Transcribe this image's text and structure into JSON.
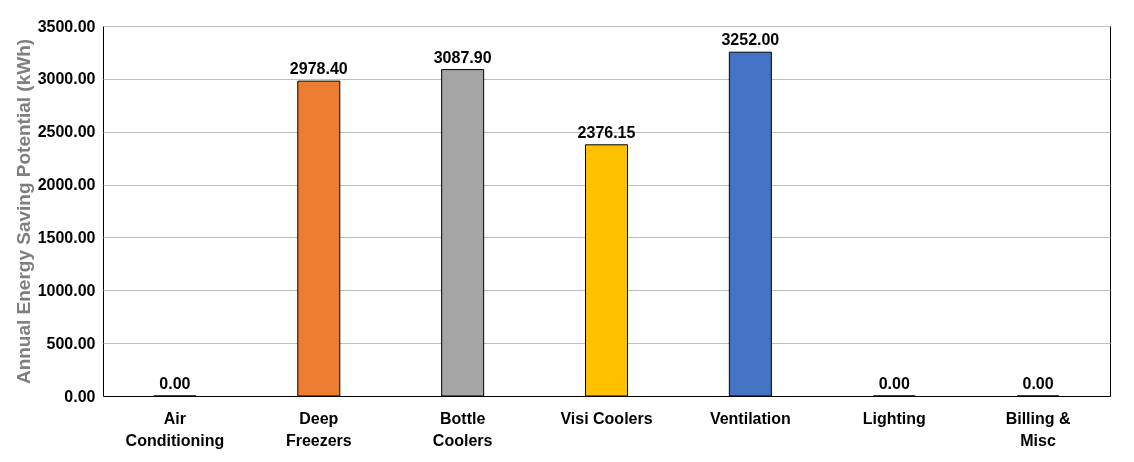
{
  "chart_data": {
    "type": "bar",
    "ylabel": "Annual Energy Saving Potential (kWh)",
    "categories": [
      "Air Conditioning",
      "Deep Freezers",
      "Bottle Coolers",
      "Visi Coolers",
      "Ventilation",
      "Lighting",
      "Billing & Misc"
    ],
    "values": [
      0,
      2978.4,
      3087.9,
      2376.15,
      3252,
      0,
      0
    ],
    "value_labels": [
      "0.00",
      "2978.40",
      "3087.90",
      "2376.15",
      "3252.00",
      "0.00",
      "0.00"
    ],
    "colors": [
      "#4472c4",
      "#ed7d31",
      "#a5a5a5",
      "#ffc000",
      "#4472c4",
      "#70ad47",
      "#264478"
    ],
    "ylim": [
      0,
      3500
    ],
    "yticks": [
      {
        "value": 0,
        "label": "0.00"
      },
      {
        "value": 500,
        "label": "500.00"
      },
      {
        "value": 1000,
        "label": "1000.00"
      },
      {
        "value": 1500,
        "label": "1500.00"
      },
      {
        "value": 2000,
        "label": "2000.00"
      },
      {
        "value": 2500,
        "label": "2500.00"
      },
      {
        "value": 3000,
        "label": "3000.00"
      },
      {
        "value": 3500,
        "label": "3500.00"
      }
    ],
    "grid": "y"
  }
}
